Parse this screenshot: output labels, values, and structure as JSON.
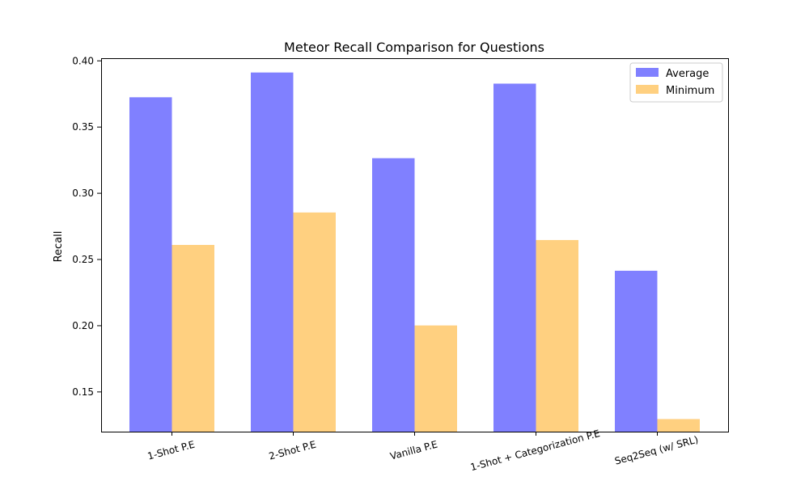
{
  "chart_data": {
    "type": "bar",
    "title": "Meteor Recall Comparison for Questions",
    "xlabel": "",
    "ylabel": "Recall",
    "categories": [
      "1-Shot P.E",
      "2-Shot P.E",
      "Vanilla P.E",
      "1-Shot + Categorization P.E",
      "Seq2Seq (w/ SRL)"
    ],
    "series": [
      {
        "name": "Average",
        "values": [
          0.3725,
          0.3912,
          0.3265,
          0.3828,
          0.2415
        ],
        "color": "#8080ff"
      },
      {
        "name": "Minimum",
        "values": [
          0.261,
          0.2855,
          0.2002,
          0.2647,
          0.1295
        ],
        "color": "#ffd080"
      }
    ],
    "ylim": [
      0.12,
      0.402
    ],
    "yticks": [
      "0.15",
      "0.20",
      "0.25",
      "0.30",
      "0.35",
      "0.40"
    ],
    "ytick_values": [
      0.15,
      0.2,
      0.25,
      0.3,
      0.35,
      0.4
    ],
    "grid": false,
    "legend_position": "top-right"
  }
}
